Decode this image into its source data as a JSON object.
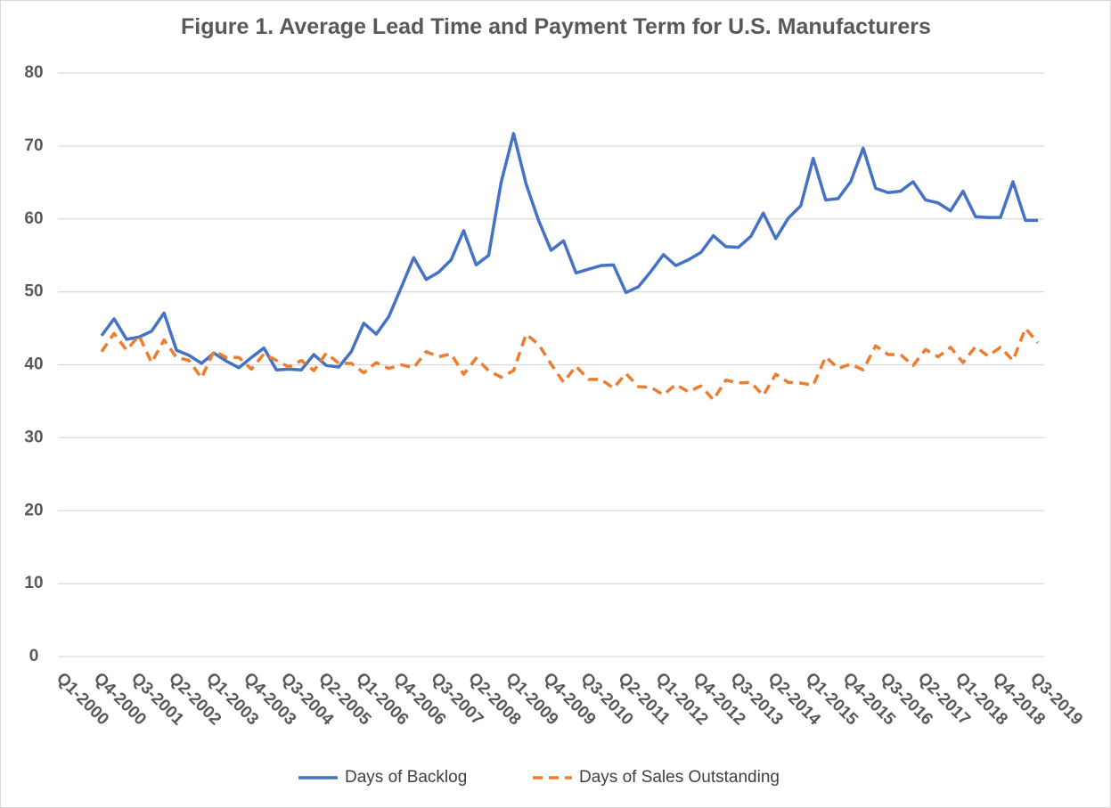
{
  "chart_data": {
    "type": "line",
    "title": "Figure 1. Average Lead Time and Payment Term for U.S. Manufacturers",
    "categories": [
      "Q1-2000",
      null,
      null,
      "Q4-2000",
      null,
      null,
      "Q3-2001",
      null,
      null,
      "Q2-2002",
      null,
      null,
      "Q1-2003",
      null,
      null,
      "Q4-2003",
      null,
      null,
      "Q3-2004",
      null,
      null,
      "Q2-2005",
      null,
      null,
      "Q1-2006",
      null,
      null,
      "Q4-2006",
      null,
      null,
      "Q3-2007",
      null,
      null,
      "Q2-2008",
      null,
      null,
      "Q1-2009",
      null,
      null,
      "Q4-2009",
      null,
      null,
      "Q3-2010",
      null,
      null,
      "Q2-2011",
      null,
      null,
      "Q1-2012",
      null,
      null,
      "Q4-2012",
      null,
      null,
      "Q3-2013",
      null,
      null,
      "Q2-2014",
      null,
      null,
      "Q1-2015",
      null,
      null,
      "Q4-2015",
      null,
      null,
      "Q3-2016",
      null,
      null,
      "Q2-2017",
      null,
      null,
      "Q1-2018",
      null,
      null,
      "Q4-2018",
      null,
      null,
      "Q3-2019"
    ],
    "series": [
      {
        "name": "Days of Backlog",
        "color": "#4472c4",
        "dash": false,
        "values": [
          null,
          null,
          null,
          44,
          46.3,
          43.5,
          43.8,
          44.6,
          47.1,
          42,
          41.3,
          40.2,
          41.6,
          40.5,
          39.6,
          41,
          42.3,
          39.3,
          39.4,
          39.3,
          41.4,
          39.9,
          39.7,
          41.8,
          45.7,
          44.2,
          46.6,
          50.6,
          54.7,
          51.7,
          52.7,
          54.4,
          58.4,
          53.7,
          55,
          65,
          71.7,
          64.8,
          59.8,
          55.7,
          57,
          52.6,
          53.1,
          53.6,
          53.7,
          49.9,
          50.7,
          52.8,
          55.1,
          53.6,
          54.4,
          55.4,
          57.7,
          56.2,
          56.1,
          57.6,
          60.8,
          57.3,
          60.1,
          61.8,
          68.3,
          62.6,
          62.8,
          65.1,
          69.7,
          64.2,
          63.6,
          63.8,
          65.1,
          62.6,
          62.2,
          61.1,
          63.8,
          60.3,
          60.2,
          60.2,
          65.1,
          59.8,
          59.8
        ]
      },
      {
        "name": "Days of Sales Outstanding",
        "color": "#ed7d31",
        "dash": true,
        "values": [
          null,
          null,
          null,
          41.8,
          44.3,
          42,
          44,
          40.3,
          43.4,
          41,
          40.6,
          38.2,
          41.9,
          41,
          41,
          39.4,
          41.5,
          40.6,
          39.7,
          40.6,
          39.2,
          41.6,
          40.2,
          40.2,
          38.9,
          40.3,
          39.5,
          40,
          39.6,
          41.8,
          41.1,
          41.5,
          38.7,
          40.9,
          39.2,
          38.3,
          39.2,
          44.2,
          42.8,
          40.1,
          37.6,
          39.8,
          38,
          38,
          36.8,
          38.8,
          37,
          36.9,
          35.9,
          37.3,
          36.3,
          37.1,
          35.2,
          37.9,
          37.5,
          37.6,
          35.8,
          38.7,
          37.6,
          37.5,
          37.2,
          41.1,
          39.5,
          40.1,
          39.3,
          42.6,
          41.4,
          41.4,
          39.9,
          42.1,
          41.1,
          42.4,
          40.3,
          42.5,
          41.2,
          42.4,
          40.6,
          45,
          43
        ]
      }
    ],
    "ylim": [
      0,
      80
    ],
    "yticks": [
      0,
      10,
      20,
      30,
      40,
      50,
      60,
      70,
      80
    ],
    "grid": true,
    "legend": "bottom"
  }
}
